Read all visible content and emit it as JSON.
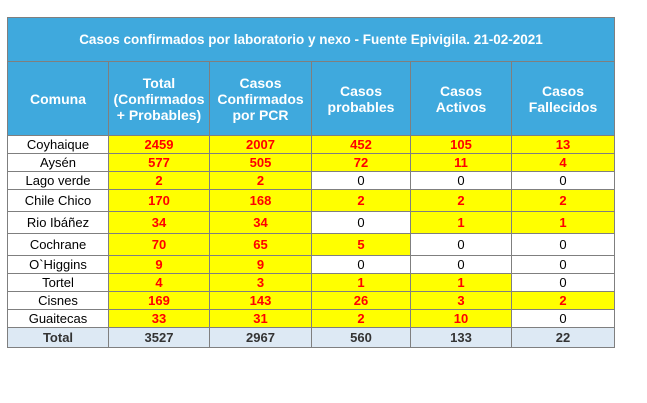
{
  "title": "Casos confirmados por laboratorio y nexo - Fuente Epivigila. 21-02-2021",
  "headers": [
    {
      "l1": "Comuna",
      "l2": "",
      "l3": ""
    },
    {
      "l1": "Total",
      "l2": "(Confirmados",
      "l3": "+ Probables)"
    },
    {
      "l1": "Casos",
      "l2": "Confirmados",
      "l3": "por PCR"
    },
    {
      "l1": "Casos",
      "l2": "probables",
      "l3": ""
    },
    {
      "l1": "Casos",
      "l2": "Activos",
      "l3": ""
    },
    {
      "l1": "Casos",
      "l2": "Fallecidos",
      "l3": ""
    }
  ],
  "rows": [
    {
      "comuna": "Coyhaique",
      "total": "2459",
      "pcr": "2007",
      "probables": "452",
      "activos": "105",
      "fallecidos": "13"
    },
    {
      "comuna": "Aysén",
      "total": "577",
      "pcr": "505",
      "probables": "72",
      "activos": "11",
      "fallecidos": "4"
    },
    {
      "comuna": "Lago verde",
      "total": "2",
      "pcr": "2",
      "probables": "0",
      "activos": "0",
      "fallecidos": "0"
    },
    {
      "comuna": "Chile Chico",
      "total": "170",
      "pcr": "168",
      "probables": "2",
      "activos": "2",
      "fallecidos": "2"
    },
    {
      "comuna": "Rio Ibáñez",
      "total": "34",
      "pcr": "34",
      "probables": "0",
      "activos": "1",
      "fallecidos": "1"
    },
    {
      "comuna": "Cochrane",
      "total": "70",
      "pcr": "65",
      "probables": "5",
      "activos": "0",
      "fallecidos": "0"
    },
    {
      "comuna": "O`Higgins",
      "total": "9",
      "pcr": "9",
      "probables": "0",
      "activos": "0",
      "fallecidos": "0"
    },
    {
      "comuna": "Tortel",
      "total": "4",
      "pcr": "3",
      "probables": "1",
      "activos": "1",
      "fallecidos": "0"
    },
    {
      "comuna": "Cisnes",
      "total": "169",
      "pcr": "143",
      "probables": "26",
      "activos": "3",
      "fallecidos": "2"
    },
    {
      "comuna": "Guaitecas",
      "total": "33",
      "pcr": "31",
      "probables": "2",
      "activos": "10",
      "fallecidos": "0"
    }
  ],
  "totals": {
    "label": "Total",
    "total": "3527",
    "pcr": "2967",
    "probables": "560",
    "activos": "133",
    "fallecidos": "22"
  },
  "colors": {
    "header_bg": "#3fa9dd",
    "highlight_bg": "#ffff00",
    "highlight_text": "#ff0000",
    "total_bg": "#dde9f4"
  }
}
